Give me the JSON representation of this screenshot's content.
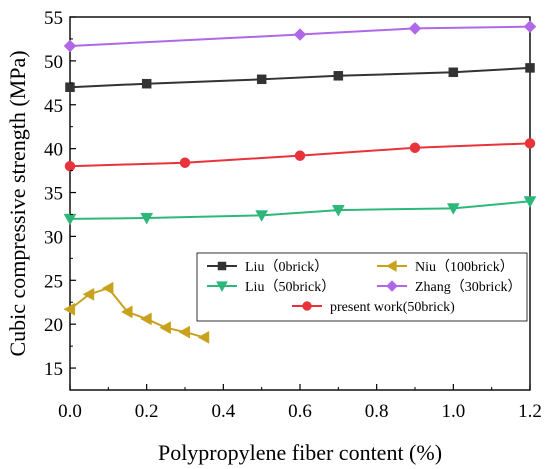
{
  "chart_data": {
    "type": "line",
    "title": "",
    "xlabel": "Polypropylene fiber content (%)",
    "ylabel": "Cubic compressive strength (MPa)",
    "xlim": [
      0.0,
      1.2
    ],
    "ylim": [
      12.5,
      55
    ],
    "xticks": [
      "0.0",
      "0.2",
      "0.4",
      "0.6",
      "0.8",
      "1.0",
      "1.2"
    ],
    "yticks": [
      "15",
      "20",
      "25",
      "30",
      "35",
      "40",
      "45",
      "50",
      "55"
    ],
    "grid": false,
    "legend_position": "lower-right inside plot",
    "series": [
      {
        "name": "Liu（0brick）",
        "color": "#333333",
        "marker": "square",
        "x": [
          0.0,
          0.2,
          0.5,
          0.7,
          1.0,
          1.2
        ],
        "y": [
          47.0,
          47.4,
          47.9,
          48.3,
          48.7,
          49.2
        ]
      },
      {
        "name": "Liu（50brick）",
        "color": "#2db87a",
        "marker": "triangle-down",
        "x": [
          0.0,
          0.2,
          0.5,
          0.7,
          1.0,
          1.2
        ],
        "y": [
          32.0,
          32.1,
          32.4,
          33.0,
          33.2,
          34.0
        ]
      },
      {
        "name": "Niu（100brick）",
        "color": "#c8a21e",
        "marker": "triangle-left",
        "x": [
          0.0,
          0.05,
          0.1,
          0.15,
          0.2,
          0.25,
          0.3,
          0.35
        ],
        "y": [
          21.7,
          23.4,
          24.1,
          21.4,
          20.6,
          19.6,
          19.1,
          18.5
        ]
      },
      {
        "name": "Zhang（30brick）",
        "color": "#b068e8",
        "marker": "diamond",
        "x": [
          0.0,
          0.6,
          0.9,
          1.2
        ],
        "y": [
          51.7,
          53.0,
          53.7,
          53.9
        ]
      },
      {
        "name": "present work(50brick)",
        "color": "#e8333a",
        "marker": "circle",
        "x": [
          0.0,
          0.3,
          0.6,
          0.9,
          1.2
        ],
        "y": [
          38.0,
          38.4,
          39.2,
          40.1,
          40.6
        ]
      }
    ]
  }
}
